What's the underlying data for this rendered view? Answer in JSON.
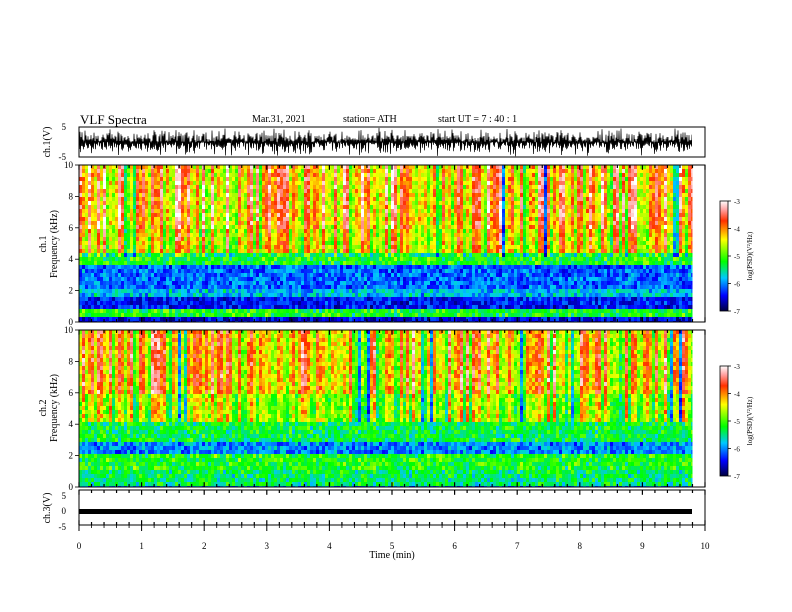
{
  "header": {
    "title": "VLF Spectra",
    "date": "Mar.31, 2021",
    "station": "station= ATH",
    "start": "start  UT  =   7 : 40 : 1"
  },
  "colors": {
    "red": "#ff0000",
    "yellow": "#ffff00",
    "green": "#00ff00",
    "cyan": "#00ffff",
    "blue": "#0000ff",
    "navy": "#000060"
  },
  "chart_data": [
    {
      "type": "line",
      "panel": "ch1-waveform",
      "ylabel": "ch.1(V)",
      "ylim": [
        -5,
        5
      ],
      "yticks": [
        "5",
        "-5"
      ],
      "xlim": [
        0,
        10
      ],
      "description_values": "dense noisy waveform oscillating roughly between -5 and 5 V"
    },
    {
      "type": "heatmap",
      "panel": "ch1-spectrogram",
      "ylabel": "ch.1 Frequency (kHz)",
      "ylabel_line1": "ch.1",
      "ylabel_line2": "Frequency (kHz)",
      "ylim": [
        0,
        10
      ],
      "yticks": [
        "0",
        "2",
        "4",
        "6",
        "8",
        "10"
      ],
      "xlim": [
        0,
        10
      ],
      "colorbar": {
        "label": "log(PSD)(V²/Hz)",
        "range": [
          -7,
          -3
        ],
        "ticks": [
          "-3",
          "-4",
          "-5",
          "-6",
          "-7"
        ]
      }
    },
    {
      "type": "heatmap",
      "panel": "ch2-spectrogram",
      "ylabel": "ch.2 Frequency (kHz)",
      "ylabel_line1": "ch.2",
      "ylabel_line2": "Frequency (kHz)",
      "ylim": [
        0,
        10
      ],
      "yticks": [
        "0",
        "2",
        "4",
        "6",
        "8",
        "10"
      ],
      "xlim": [
        0,
        10
      ],
      "colorbar": {
        "label": "log(PSD)(V²/Hz)",
        "range": [
          -7,
          -3
        ],
        "ticks": [
          "-3",
          "-4",
          "-5",
          "-6",
          "-7"
        ]
      }
    },
    {
      "type": "line",
      "panel": "ch3-waveform",
      "ylabel": "ch.3(V)",
      "ylim": [
        -5,
        5
      ],
      "yticks": [
        "5",
        "0",
        "-5"
      ],
      "xlim": [
        0,
        10
      ],
      "value": -1
    }
  ],
  "xaxis": {
    "label": "Time (min)",
    "ticks": [
      "0",
      "1",
      "2",
      "3",
      "4",
      "5",
      "6",
      "7",
      "8",
      "9",
      "10"
    ]
  }
}
